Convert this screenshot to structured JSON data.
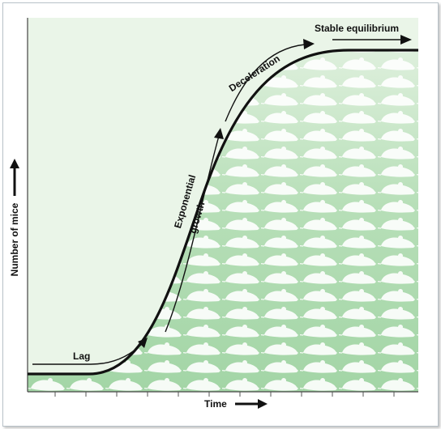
{
  "labels": {
    "lag": "Lag",
    "exponential_line1": "Exponential",
    "exponential_line2": "growth",
    "deceleration": "Deceleration",
    "stable": "Stable equilibrium",
    "y_axis": "Number of mice",
    "x_axis": "Time"
  },
  "colors": {
    "plot_background": "#eaf5e8",
    "fill_green": "#a9d8ac",
    "mouse_icon": "#ffffff",
    "curve": "#111111"
  },
  "icon": "mouse-icon"
}
